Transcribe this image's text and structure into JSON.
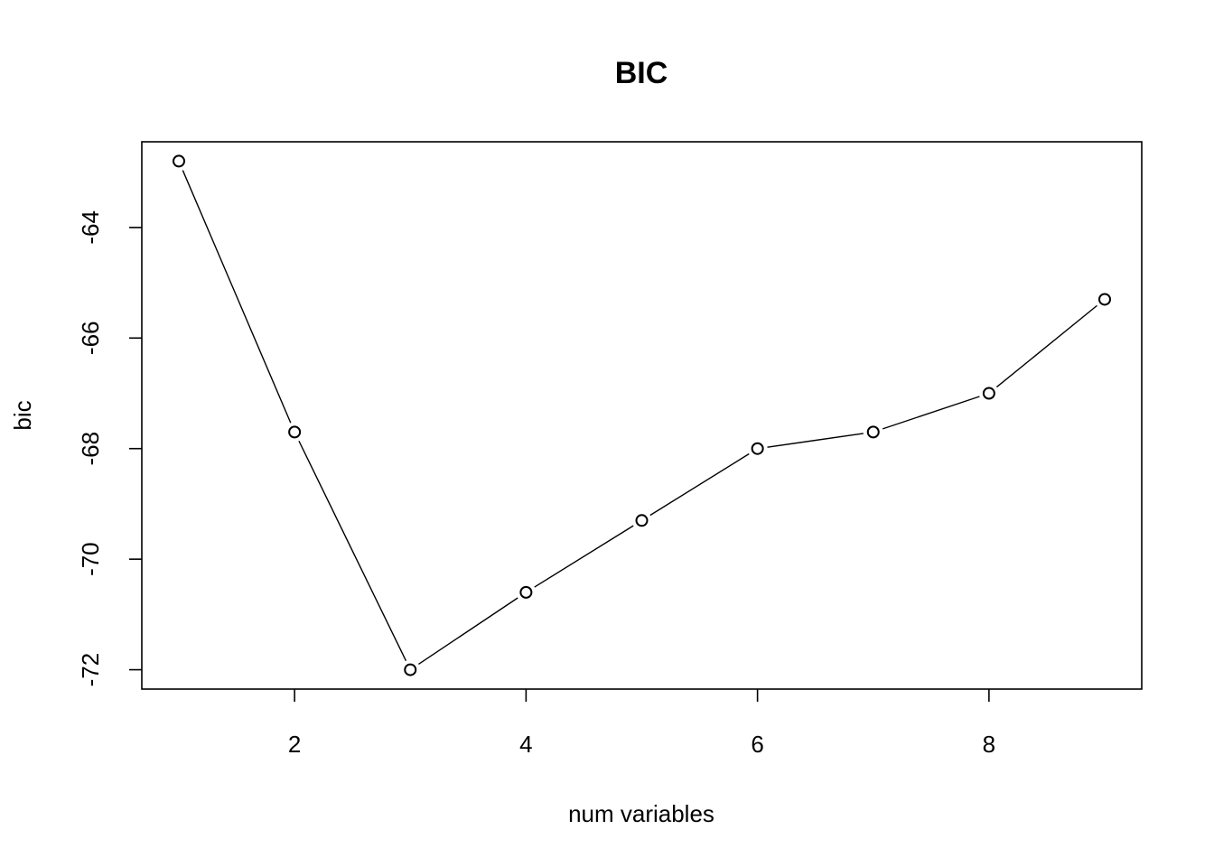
{
  "chart_data": {
    "type": "line",
    "title": "BIC",
    "xlabel": "num variables",
    "ylabel": "bic",
    "x": [
      1,
      2,
      3,
      4,
      5,
      6,
      7,
      8,
      9
    ],
    "series": [
      {
        "values": [
          -62.8,
          -67.7,
          -72.0,
          -70.6,
          -69.3,
          -68.0,
          -67.7,
          -67.0,
          -65.3
        ]
      }
    ],
    "xticks": [
      2,
      4,
      6,
      8
    ],
    "yticks": [
      -64,
      -66,
      -68,
      -70,
      -72
    ],
    "xlim": [
      0.68,
      9.32
    ],
    "ylim": [
      -72.35,
      -62.45
    ],
    "grid": false,
    "legend": "none",
    "markers": "open-circle",
    "colors": {
      "line": "#000000",
      "marker_fill": "#ffffff"
    }
  }
}
